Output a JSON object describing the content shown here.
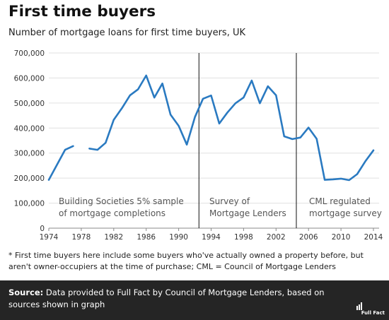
{
  "title": "First time buyers",
  "subtitle": "Number of mortgage loans for first time buyers, UK",
  "footnote": "* First time buyers here include some buyers who've actually owned a property before, but aren't owner-occupiers at the time of purchase; CML = Council of Mortgage Lenders",
  "source": {
    "label": "Source:",
    "text": " Data provided to Full Fact by Council of Mortgage Lenders, based on sources shown in graph"
  },
  "logo_text": "Full Fact",
  "chart_data": {
    "type": "line",
    "title": "",
    "xlabel": "",
    "ylabel": "",
    "xlim": [
      1974,
      2014
    ],
    "ylim": [
      0,
      700000
    ],
    "grid": "horizontal",
    "line_color": "#2a7ac1",
    "x_ticks": [
      "1974",
      "1978",
      "1982",
      "1986",
      "1990",
      "1994",
      "1998",
      "2002",
      "2006",
      "2010",
      "2014"
    ],
    "y_ticks": [
      "0",
      "100,000",
      "200,000",
      "300,000",
      "400,000",
      "500,000",
      "600,000",
      "700,000"
    ],
    "segments": [
      {
        "x": [
          1974,
          1975,
          1976,
          1977
        ],
        "y": [
          193000,
          253000,
          313000,
          328000
        ]
      },
      {
        "x": [
          1979,
          1980,
          1981,
          1982,
          1983,
          1984,
          1985,
          1986,
          1987,
          1988,
          1989,
          1990,
          1991,
          1992,
          1993,
          1994,
          1995,
          1996,
          1997,
          1998,
          1999,
          2000,
          2001,
          2002,
          2003,
          2004,
          2005,
          2006,
          2007,
          2008,
          2009,
          2010,
          2011,
          2012,
          2013,
          2014
        ],
        "y": [
          318000,
          313000,
          341000,
          433000,
          479000,
          531000,
          555000,
          610000,
          522000,
          578000,
          454000,
          409000,
          334000,
          444000,
          517000,
          530000,
          418000,
          462000,
          499000,
          522000,
          590000,
          499000,
          567000,
          531000,
          367000,
          356000,
          362000,
          402000,
          357000,
          193000,
          195000,
          198000,
          192000,
          216000,
          267000,
          311000
        ]
      }
    ],
    "dividers": [
      1992.5,
      2004.5
    ],
    "annotations": [
      {
        "lines": [
          "Building Societies 5% sample",
          "of mortgage completions"
        ]
      },
      {
        "lines": [
          "Survey of",
          "Mortgage Lenders"
        ]
      },
      {
        "lines": [
          "CML regulated",
          "mortgage survey"
        ]
      }
    ]
  }
}
